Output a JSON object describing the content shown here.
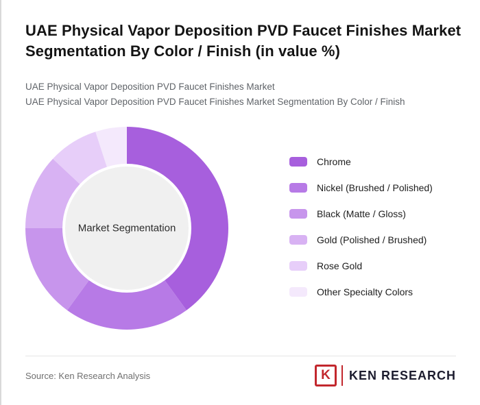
{
  "page": {
    "title": "UAE Physical Vapor Deposition PVD Faucet Finishes Market Segmentation By Color / Finish (in value %)",
    "subtitle_line1": "UAE Physical Vapor Deposition PVD Faucet Finishes Market",
    "subtitle_line2": "UAE Physical Vapor Deposition PVD Faucet Finishes Market Segmentation By Color / Finish"
  },
  "chart_data": {
    "type": "pie",
    "donut": true,
    "title": "UAE PVD Faucet Finishes Market Segmentation By Color / Finish (in value %)",
    "center_label": "Market Segmentation",
    "legend_position": "right",
    "categories": [
      "Chrome",
      "Nickel (Brushed / Polished)",
      "Black (Matte / Gloss)",
      "Gold (Polished / Brushed)",
      "Rose Gold",
      "Other Specialty Colors"
    ],
    "values": [
      40,
      20,
      15,
      12,
      8,
      5
    ],
    "colors": [
      "#a75fdd",
      "#b77ae6",
      "#c795ec",
      "#d8b2f3",
      "#e7cef9",
      "#f4e9fc"
    ],
    "center_fill": "#f0f0f0"
  },
  "footer": {
    "source": "Source: Ken Research Analysis",
    "logo": {
      "letter": "K",
      "text": "KEN RESEARCH",
      "color": "#c2272d"
    }
  }
}
